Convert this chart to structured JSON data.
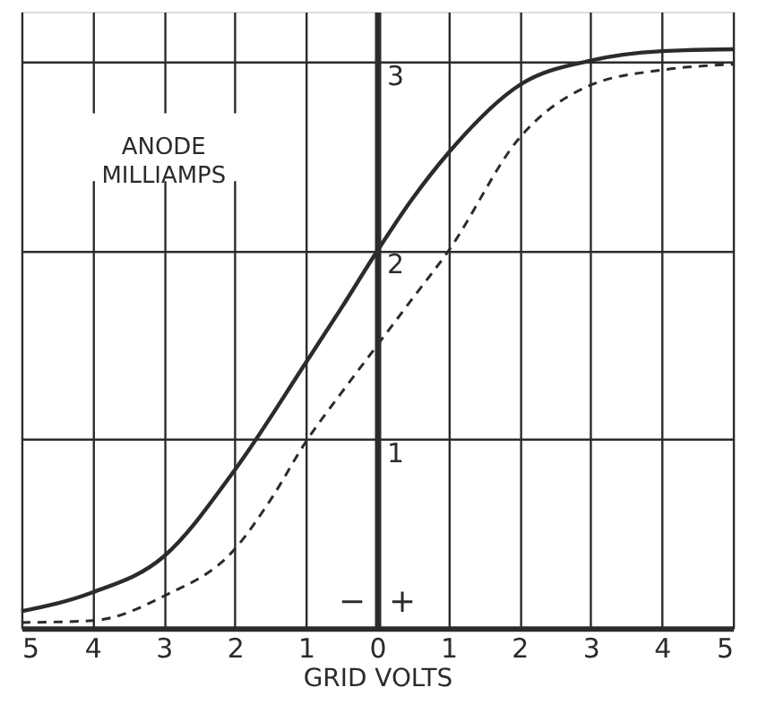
{
  "chart_data": {
    "type": "line",
    "xlabel": "GRID VOLTS",
    "ylabel": "ANODE MILLIAMPS",
    "xlim": [
      -5,
      5
    ],
    "ylim": [
      0,
      3.27
    ],
    "xticks": [
      {
        "value": -5,
        "label": "5"
      },
      {
        "value": -4,
        "label": "4"
      },
      {
        "value": -3,
        "label": "3"
      },
      {
        "value": -2,
        "label": "2"
      },
      {
        "value": -1,
        "label": "1"
      },
      0,
      1,
      2,
      3,
      4,
      5
    ],
    "yticks": [
      {
        "value": 0,
        "label": null
      },
      1,
      2,
      3
    ],
    "grid": true,
    "marker": "none",
    "annotations": [
      "−",
      "+"
    ],
    "series": [
      {
        "color": "#2b2b2b",
        "line_style": "solid",
        "x": [
          -5,
          -4,
          -3,
          -2,
          -1,
          -0.5,
          0,
          0.5,
          1,
          2,
          3,
          4,
          5
        ],
        "values": [
          0.09,
          0.19,
          0.38,
          0.84,
          1.41,
          1.7,
          2.0,
          2.28,
          2.52,
          2.88,
          3.01,
          3.06,
          3.07
        ]
      },
      {
        "color": "#2b2b2b",
        "line_style": "dashed",
        "x": [
          -5,
          -4,
          -3,
          -2,
          -1.5,
          -1,
          -0.5,
          0,
          0.5,
          1,
          2,
          3,
          4,
          5
        ],
        "values": [
          0.03,
          0.04,
          0.17,
          0.42,
          0.68,
          0.99,
          1.25,
          1.5,
          1.75,
          2.0,
          2.6,
          2.88,
          2.96,
          2.99
        ]
      }
    ]
  }
}
